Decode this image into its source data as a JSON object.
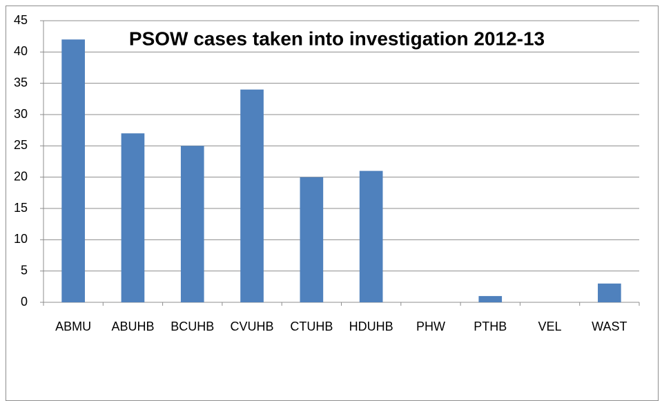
{
  "chart_data": {
    "type": "bar",
    "title": "PSOW cases taken into investigation 2012-13",
    "categories": [
      "ABMU",
      "ABUHB",
      "BCUHB",
      "CVUHB",
      "CTUHB",
      "HDUHB",
      "PHW",
      "PTHB",
      "VEL",
      "WAST"
    ],
    "values": [
      42,
      27,
      25,
      34,
      20,
      21,
      0,
      1,
      0,
      3
    ],
    "color": "#4f81bd",
    "ylim": [
      0,
      45
    ],
    "yticks": [
      0,
      5,
      10,
      15,
      20,
      25,
      30,
      35,
      40,
      45
    ],
    "grid": true
  }
}
